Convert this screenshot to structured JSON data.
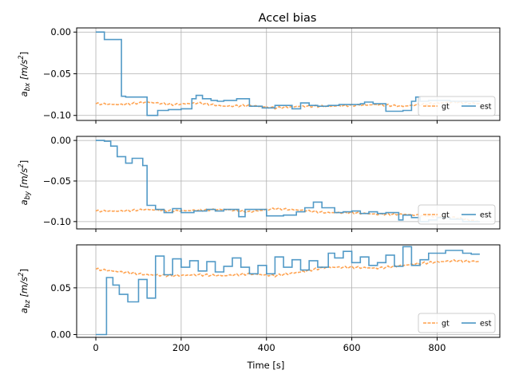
{
  "figure": {
    "title": "Accel bias",
    "xlabel": "Time [s]"
  },
  "chart_data": [
    {
      "type": "line",
      "ylabel": {
        "base": "a",
        "sub": "bx",
        "unit_pre": " [m/s",
        "sup": "2",
        "unit_post": "]"
      },
      "xlim": [
        -45,
        947
      ],
      "ylim": [
        -0.106,
        0.005
      ],
      "yticks": [
        0.0,
        -0.05,
        -0.1
      ],
      "ytick_labels": [
        "0.00",
        "−0.05",
        "−0.10"
      ],
      "xticks": [
        0,
        200,
        400,
        600,
        800
      ],
      "xtick_labels": [],
      "grid": true,
      "legend": {
        "placement": "lower-right",
        "entries": [
          "gt",
          "est"
        ]
      },
      "series": [
        {
          "name": "gt",
          "color": "#ff9f4a",
          "style": "dashed",
          "x": [
            0,
            60,
            120,
            180,
            240,
            300,
            360,
            420,
            480,
            540,
            600,
            660,
            720,
            780,
            840,
            900
          ],
          "y": [
            -0.086,
            -0.087,
            -0.084,
            -0.087,
            -0.085,
            -0.089,
            -0.088,
            -0.091,
            -0.089,
            -0.089,
            -0.088,
            -0.087,
            -0.089,
            -0.086,
            -0.084,
            -0.086
          ]
        },
        {
          "name": "est",
          "color": "#3f8fc1",
          "style": "step",
          "x": [
            0,
            20,
            60,
            70,
            110,
            120,
            145,
            170,
            200,
            225,
            235,
            250,
            270,
            285,
            300,
            330,
            360,
            390,
            420,
            460,
            480,
            500,
            520,
            545,
            570,
            620,
            630,
            650,
            680,
            690,
            720,
            740,
            750,
            760,
            780,
            830,
            900
          ],
          "y": [
            0.0,
            -0.009,
            -0.077,
            -0.078,
            -0.078,
            -0.1,
            -0.094,
            -0.093,
            -0.092,
            -0.08,
            -0.076,
            -0.08,
            -0.082,
            -0.083,
            -0.082,
            -0.08,
            -0.089,
            -0.091,
            -0.088,
            -0.092,
            -0.085,
            -0.088,
            -0.089,
            -0.088,
            -0.087,
            -0.086,
            -0.084,
            -0.086,
            -0.095,
            -0.095,
            -0.094,
            -0.083,
            -0.078,
            -0.083,
            -0.082,
            -0.083,
            -0.083
          ]
        }
      ]
    },
    {
      "type": "line",
      "ylabel": {
        "base": "a",
        "sub": "by",
        "unit_pre": " [m/s",
        "sup": "2",
        "unit_post": "]"
      },
      "xlim": [
        -45,
        947
      ],
      "ylim": [
        -0.109,
        0.005
      ],
      "yticks": [
        0.0,
        -0.05,
        -0.1
      ],
      "ytick_labels": [
        "0.00",
        "−0.05",
        "−0.10"
      ],
      "xticks": [
        0,
        200,
        400,
        600,
        800
      ],
      "xtick_labels": [],
      "grid": true,
      "legend": {
        "placement": "lower-right",
        "entries": [
          "gt",
          "est"
        ]
      },
      "series": [
        {
          "name": "gt",
          "color": "#ff9f4a",
          "style": "dashed",
          "x": [
            0,
            60,
            120,
            180,
            240,
            300,
            360,
            420,
            480,
            540,
            600,
            660,
            720,
            780,
            840,
            900
          ],
          "y": [
            -0.087,
            -0.087,
            -0.085,
            -0.087,
            -0.086,
            -0.085,
            -0.088,
            -0.084,
            -0.086,
            -0.089,
            -0.089,
            -0.091,
            -0.091,
            -0.093,
            -0.095,
            -0.1
          ]
        },
        {
          "name": "est",
          "color": "#3f8fc1",
          "style": "step",
          "x": [
            0,
            20,
            35,
            50,
            70,
            85,
            110,
            120,
            140,
            160,
            180,
            200,
            230,
            260,
            280,
            300,
            335,
            350,
            370,
            400,
            440,
            470,
            490,
            510,
            530,
            560,
            580,
            600,
            620,
            640,
            660,
            680,
            710,
            720,
            740,
            760,
            780,
            800,
            830,
            860,
            900
          ],
          "y": [
            0.0,
            -0.001,
            -0.007,
            -0.02,
            -0.028,
            -0.022,
            -0.031,
            -0.08,
            -0.085,
            -0.089,
            -0.084,
            -0.089,
            -0.087,
            -0.085,
            -0.087,
            -0.085,
            -0.094,
            -0.085,
            -0.085,
            -0.093,
            -0.092,
            -0.088,
            -0.083,
            -0.076,
            -0.083,
            -0.089,
            -0.088,
            -0.087,
            -0.09,
            -0.088,
            -0.09,
            -0.089,
            -0.098,
            -0.092,
            -0.095,
            -0.1,
            -0.098,
            -0.095,
            -0.097,
            -0.1,
            -0.1
          ]
        }
      ]
    },
    {
      "type": "line",
      "ylabel": {
        "base": "a",
        "sub": "bz",
        "unit_pre": " [m/s",
        "sup": "2",
        "unit_post": "]"
      },
      "xlim": [
        -45,
        947
      ],
      "ylim": [
        -0.003,
        0.096
      ],
      "yticks": [
        0.0,
        0.05
      ],
      "ytick_labels": [
        "0.00",
        "0.05"
      ],
      "xticks": [
        0,
        200,
        400,
        600,
        800
      ],
      "xtick_labels": [
        "0",
        "200",
        "400",
        "600",
        "800"
      ],
      "grid": true,
      "legend": {
        "placement": "lower-right",
        "entries": [
          "gt",
          "est"
        ]
      },
      "series": [
        {
          "name": "gt",
          "color": "#ff9f4a",
          "style": "dashed",
          "x": [
            0,
            60,
            120,
            180,
            240,
            300,
            360,
            420,
            480,
            540,
            600,
            660,
            720,
            780,
            840,
            900
          ],
          "y": [
            0.07,
            0.067,
            0.064,
            0.063,
            0.064,
            0.063,
            0.065,
            0.063,
            0.067,
            0.072,
            0.072,
            0.071,
            0.074,
            0.077,
            0.079,
            0.078
          ]
        },
        {
          "name": "est",
          "color": "#3f8fc1",
          "style": "step",
          "x": [
            0,
            25,
            40,
            55,
            75,
            100,
            120,
            140,
            160,
            180,
            200,
            220,
            240,
            260,
            280,
            300,
            320,
            340,
            360,
            380,
            400,
            420,
            440,
            460,
            480,
            500,
            520,
            545,
            560,
            580,
            600,
            620,
            640,
            660,
            680,
            700,
            720,
            740,
            760,
            780,
            800,
            820,
            840,
            860,
            880,
            900
          ],
          "y": [
            0.0,
            0.061,
            0.053,
            0.043,
            0.035,
            0.059,
            0.039,
            0.084,
            0.064,
            0.081,
            0.072,
            0.079,
            0.068,
            0.078,
            0.067,
            0.073,
            0.082,
            0.072,
            0.065,
            0.074,
            0.065,
            0.083,
            0.072,
            0.08,
            0.069,
            0.079,
            0.072,
            0.087,
            0.082,
            0.089,
            0.077,
            0.083,
            0.074,
            0.077,
            0.085,
            0.073,
            0.094,
            0.074,
            0.08,
            0.087,
            0.087,
            0.09,
            0.09,
            0.087,
            0.086,
            0.086
          ]
        }
      ]
    }
  ]
}
